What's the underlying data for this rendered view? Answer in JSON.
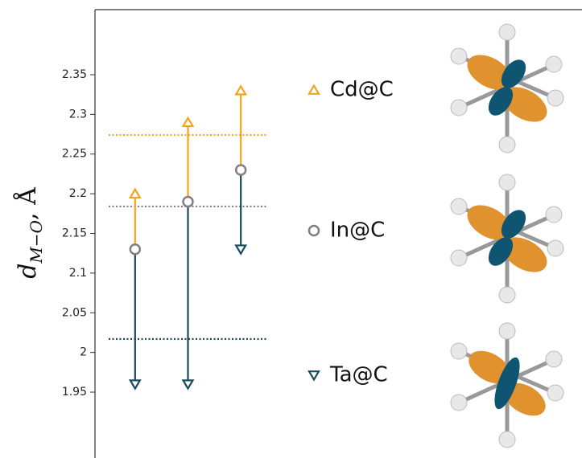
{
  "chart_data": {
    "type": "range-markers",
    "y_label": {
      "symbol": "d",
      "subscript": "M−O",
      "unit": ", Å"
    },
    "categories": [
      null,
      null,
      null
    ],
    "series": [
      {
        "name": "Cd@C",
        "color": "#f2a51e",
        "marker": "triangle-up",
        "values": [
          2.2,
          2.29,
          2.33
        ],
        "reference": 2.274
      },
      {
        "name": "In@C",
        "color": "#808080",
        "marker": "circle",
        "values": [
          2.13,
          2.19,
          2.23
        ],
        "reference": 2.184
      },
      {
        "name": "Ta@C",
        "color": "#1b4a5e",
        "marker": "triangle-down",
        "values": [
          1.96,
          1.96,
          2.13
        ],
        "reference": 2.017
      }
    ],
    "ylim": [
      1.867,
      2.432
    ],
    "yticks": [
      1.95,
      2,
      2.05,
      2.1,
      2.15,
      2.2,
      2.25,
      2.3,
      2.35
    ]
  }
}
